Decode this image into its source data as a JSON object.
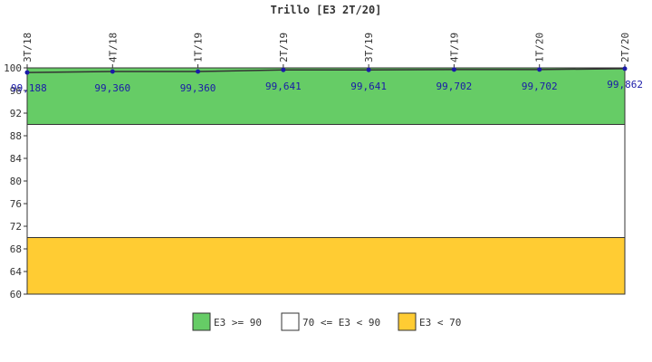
{
  "chart_data": {
    "type": "line",
    "title": "Trillo [E3 2T/20]",
    "categories": [
      "3T/18",
      "4T/18",
      "1T/19",
      "2T/19",
      "3T/19",
      "4T/19",
      "1T/20",
      "2T/20"
    ],
    "values": [
      99.188,
      99.36,
      99.36,
      99.641,
      99.641,
      99.702,
      99.702,
      99.862
    ],
    "data_labels": [
      "99,188",
      "99,360",
      "99,360",
      "99,641",
      "99,641",
      "99,702",
      "99,702",
      "99,862"
    ],
    "yticks": [
      "60",
      "64",
      "68",
      "72",
      "76",
      "80",
      "84",
      "88",
      "92",
      "96",
      "100"
    ],
    "ylim": [
      60,
      100
    ],
    "bands": [
      {
        "label": "E3 >= 90",
        "from": 90,
        "to": 100,
        "color": "#66cc66"
      },
      {
        "label": "70 <= E3 < 90",
        "from": 70,
        "to": 90,
        "color": "#ffffff"
      },
      {
        "label": "E3 < 70",
        "from": 60,
        "to": 70,
        "color": "#ffcc33"
      }
    ],
    "line_color": "#333333",
    "point_color": "#1a1aa8",
    "legend_position": "bottom",
    "grid": false
  }
}
